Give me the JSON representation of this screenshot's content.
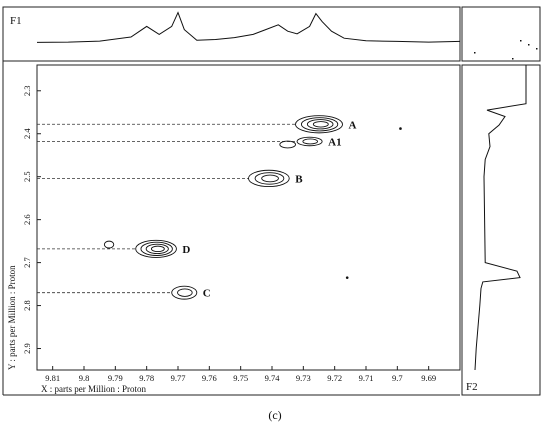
{
  "caption": "(c)",
  "chart_data": {
    "type": "contour",
    "x_axis": {
      "label": "X : parts per Million : Proton",
      "range": [
        9.815,
        9.68
      ],
      "ticks": [
        "9.81",
        "9.8",
        "9.79",
        "9.78",
        "9.77",
        "9.76",
        "9.75",
        "9.74",
        "9.73",
        "9.72",
        "9.71",
        "9.7",
        "9.69"
      ]
    },
    "y_axis": {
      "label": "Y : parts per Million : Proton",
      "range": [
        2.24,
        2.95
      ],
      "ticks": [
        "2.3",
        "2.4",
        "2.5",
        "2.6",
        "2.7",
        "2.8",
        "2.9"
      ]
    },
    "f1_label": "F1",
    "f2_label": "F2",
    "peaks": [
      {
        "label": "A",
        "x": 9.725,
        "y": 2.378,
        "rx": 0.0075,
        "ry": 0.02,
        "levels": 4
      },
      {
        "label": "A1",
        "x": 9.728,
        "y": 2.418,
        "rx": 0.004,
        "ry": 0.01,
        "levels": 2
      },
      {
        "label": "",
        "x": 9.735,
        "y": 2.425,
        "rx": 0.0025,
        "ry": 0.008,
        "levels": 1
      },
      {
        "label": "B",
        "x": 9.741,
        "y": 2.504,
        "rx": 0.0065,
        "ry": 0.019,
        "levels": 3
      },
      {
        "label": "D",
        "x": 9.777,
        "y": 2.668,
        "rx": 0.0065,
        "ry": 0.02,
        "levels": 4
      },
      {
        "label": "",
        "x": 9.792,
        "y": 2.658,
        "rx": 0.0015,
        "ry": 0.008,
        "levels": 1
      },
      {
        "label": "C",
        "x": 9.768,
        "y": 2.77,
        "rx": 0.004,
        "ry": 0.015,
        "levels": 2
      }
    ],
    "guides_y": [
      2.378,
      2.418,
      2.504,
      2.668,
      2.77
    ],
    "noise_points": [
      {
        "x": 9.699,
        "y": 2.388
      },
      {
        "x": 9.716,
        "y": 2.735
      }
    ],
    "f1_projection": {
      "x": [
        9.815,
        9.805,
        9.795,
        9.785,
        9.78,
        9.776,
        9.772,
        9.77,
        9.768,
        9.764,
        9.758,
        9.752,
        9.746,
        9.742,
        9.738,
        9.735,
        9.732,
        9.728,
        9.726,
        9.724,
        9.721,
        9.717,
        9.71,
        9.7,
        9.69,
        9.68
      ],
      "value": [
        0.05,
        0.06,
        0.09,
        0.22,
        0.55,
        0.3,
        0.55,
        0.98,
        0.45,
        0.12,
        0.14,
        0.2,
        0.3,
        0.45,
        0.6,
        0.4,
        0.32,
        0.55,
        0.95,
        0.7,
        0.4,
        0.18,
        0.1,
        0.08,
        0.06,
        0.08
      ]
    },
    "f2_projection": {
      "y": [
        2.24,
        2.33,
        2.345,
        2.36,
        2.38,
        2.4,
        2.43,
        2.46,
        2.5,
        2.6,
        2.7,
        2.72,
        2.735,
        2.745,
        2.76,
        2.8,
        2.85,
        2.9,
        2.95
      ],
      "value": [
        0.9,
        0.9,
        0.25,
        0.55,
        0.45,
        0.28,
        0.3,
        0.22,
        0.2,
        0.21,
        0.22,
        0.75,
        0.8,
        0.18,
        0.15,
        0.13,
        0.1,
        0.07,
        0.05
      ]
    }
  }
}
